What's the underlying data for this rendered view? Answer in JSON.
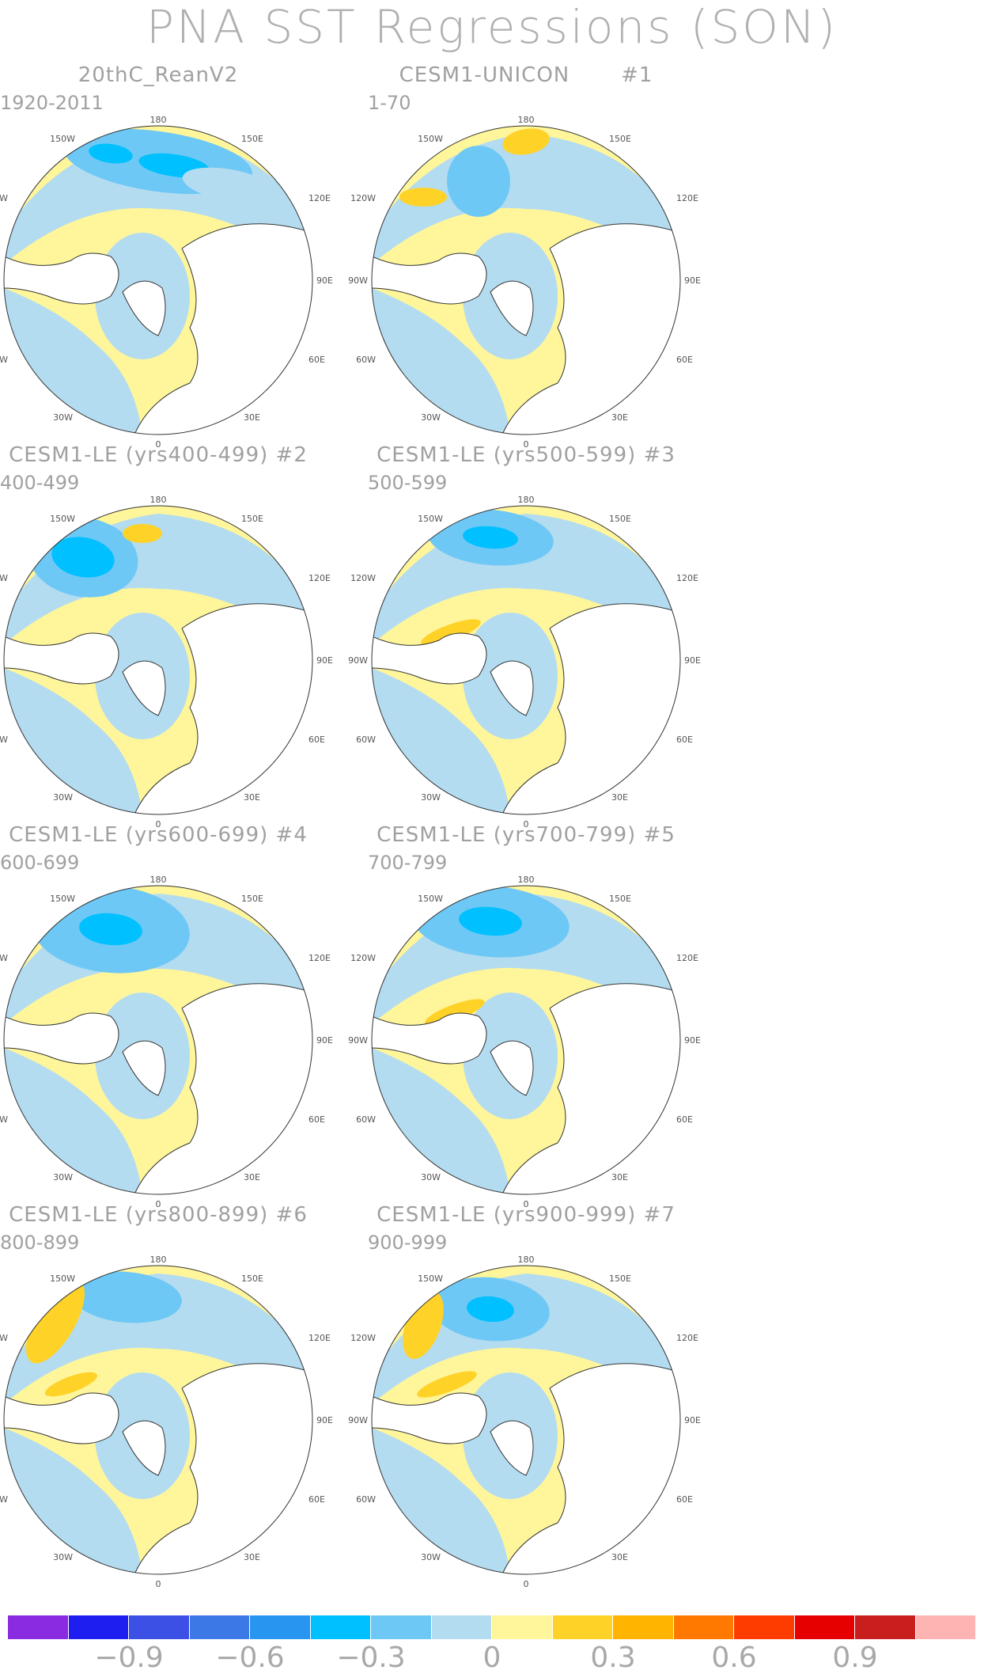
{
  "title": "PNA SST Regressions (SON)",
  "panels": [
    {
      "title": "20thC_ReanV2",
      "years": "1920-2011"
    },
    {
      "title": "CESM1-UNICON       #1",
      "years": "1-70"
    },
    {
      "title": "CESM1-LE (yrs400-499) #2",
      "years": "400-499"
    },
    {
      "title": "CESM1-LE (yrs500-599) #3",
      "years": "500-599"
    },
    {
      "title": "CESM1-LE (yrs600-699) #4",
      "years": "600-699"
    },
    {
      "title": "CESM1-LE (yrs700-799) #5",
      "years": "700-799"
    },
    {
      "title": "CESM1-LE (yrs800-899) #6",
      "years": "800-899"
    },
    {
      "title": "CESM1-LE (yrs900-999) #7",
      "years": "900-999"
    }
  ],
  "longitude_labels": {
    "top": "180",
    "top_left": "150W",
    "top_right": "150E",
    "upper_left": "120W",
    "upper_right": "120E",
    "left": "90W",
    "right": "90E",
    "lower_left": "60W",
    "lower_right": "60E",
    "bottom_left": "30W",
    "bottom_right": "30E",
    "bottom": "0"
  },
  "colorbar": {
    "colors": [
      "#8a2be2",
      "#1e1ef0",
      "#3c50e6",
      "#3c78e6",
      "#2896f0",
      "#00c0ff",
      "#6ec8f5",
      "#b4dcf0",
      "#fff59b",
      "#ffd228",
      "#ffb400",
      "#ff7800",
      "#ff3c00",
      "#e60000",
      "#c81e1e",
      "#ffb4b4"
    ],
    "labels": [
      "−0.9",
      "−0.6",
      "−0.3",
      "0",
      "0.3",
      "0.6",
      "0.9"
    ]
  },
  "colors": {
    "ocean_default": "#fff59b",
    "negative_light": "#b4dcf0",
    "negative_mid": "#6ec8f5",
    "negative_strong": "#00c0ff",
    "positive_light": "#ffd228",
    "land": "#ffffff"
  }
}
